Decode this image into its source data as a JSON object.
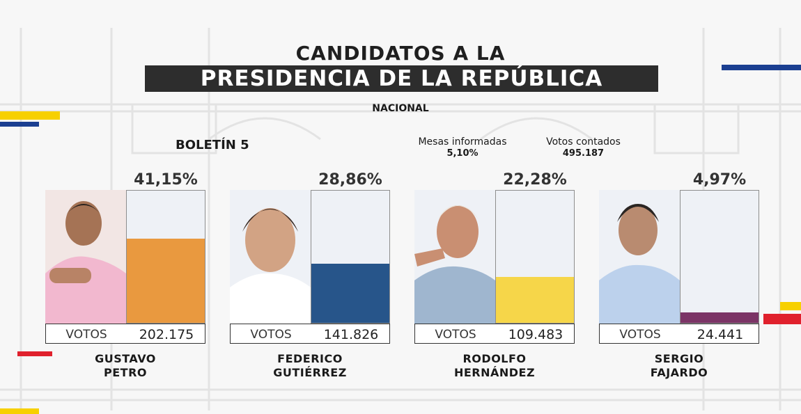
{
  "header": {
    "title_line1": "CANDIDATOS A LA",
    "title_line2": "PRESIDENCIA DE LA REPÚBLICA",
    "scope": "NACIONAL"
  },
  "bulletin": "BOLETÍN 5",
  "stats": {
    "mesas_label": "Mesas informadas",
    "mesas_value": "5,10%",
    "votos_label": "Votos contados",
    "votos_value": "495.187"
  },
  "votes_label": "VOTOS",
  "colors": {
    "petro": "#e9993f",
    "fico": "#27558a",
    "rodolfo": "#f6d649",
    "fajardo": "#7b3466",
    "accent_yellow": "#f7d000",
    "accent_blue": "#1b3f91",
    "accent_red": "#e0212d"
  },
  "chart_data": {
    "type": "bar",
    "categories": [
      "GUSTAVO PETRO",
      "FEDERICO GUTIÉRREZ",
      "RODOLFO HERNÁNDEZ",
      "SERGIO FAJARDO"
    ],
    "series": [
      {
        "values": [
          41.15,
          28.86,
          22.28,
          4.97
        ]
      }
    ],
    "percent_labels": [
      "41,15%",
      "28,86%",
      "22,28%",
      "4,97%"
    ],
    "votes": [
      "202.175",
      "141.826",
      "109.483",
      "24.441"
    ],
    "ylim": [
      0,
      100
    ],
    "grid": false
  },
  "candidates": [
    {
      "first": "GUSTAVO",
      "last": "PETRO",
      "color": "#e9993f",
      "photo_icon": "candidate-photo"
    },
    {
      "first": "FEDERICO",
      "last": "GUTIÉRREZ",
      "color": "#27558a",
      "photo_icon": "candidate-photo"
    },
    {
      "first": "RODOLFO",
      "last": "HERNÁNDEZ",
      "color": "#f6d649",
      "photo_icon": "candidate-photo"
    },
    {
      "first": "SERGIO",
      "last": "FAJARDO",
      "color": "#7b3466",
      "photo_icon": "candidate-photo"
    }
  ]
}
